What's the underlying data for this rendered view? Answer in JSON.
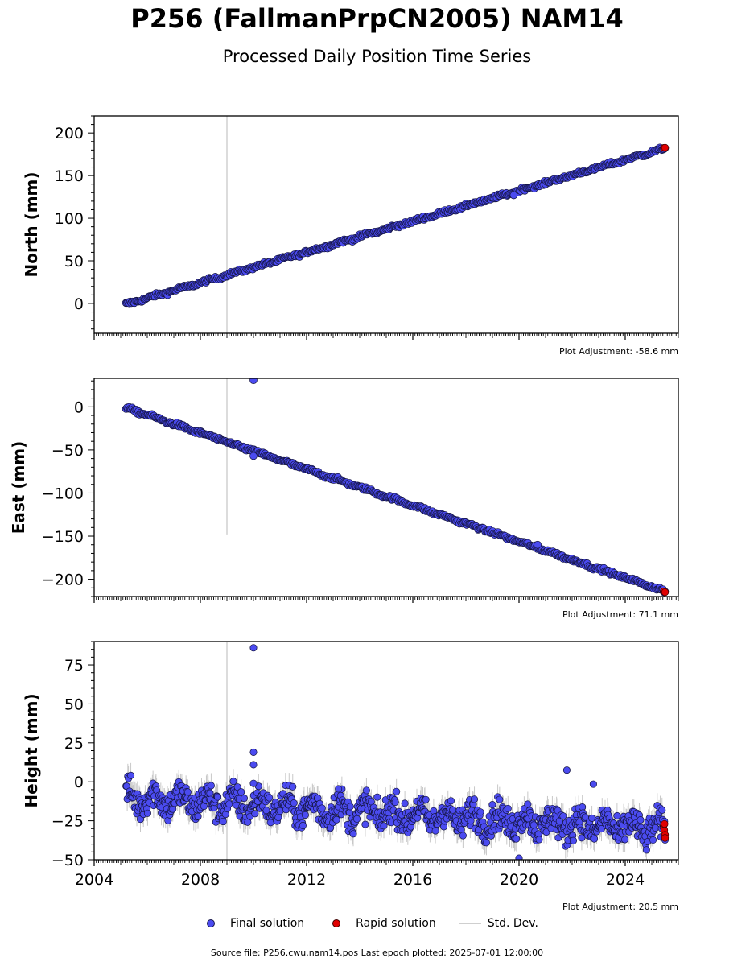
{
  "title": "P256 (FallmanPrpCN2005) NAM14",
  "subtitle": "Processed Daily Position Time Series",
  "legend": {
    "final": "Final solution",
    "rapid": "Rapid solution",
    "std": "Std. Dev."
  },
  "footer": "Source file: P256.cwu.nam14.pos  Last epoch plotted: 2025-07-01 12:00:00",
  "colors": {
    "final": "#4b4bf0",
    "rapid": "#e00000",
    "std": "#c8c8c8"
  },
  "chart_data": [
    {
      "type": "scatter",
      "ylabel": "North (mm)",
      "adjustment": "Plot Adjustment: -58.6 mm",
      "xlim": [
        2004,
        2026
      ],
      "ylim": [
        -35,
        220
      ],
      "yticks": [
        0,
        50,
        100,
        150,
        200
      ],
      "data_start": 2005.2,
      "data_end": 2025.5,
      "trend_start": -1,
      "trend_end": 182,
      "scatter_noise_mm": 1.5,
      "rapid": [
        [
          2025.45,
          182.5
        ],
        [
          2025.5,
          182.8
        ]
      ],
      "std_spike": {
        "x": 2009.0,
        "ymin": -35,
        "ymax": 220
      },
      "outliers": [
        [
          2019.8,
          127
        ]
      ]
    },
    {
      "type": "scatter",
      "ylabel": "East (mm)",
      "adjustment": "Plot Adjustment: 71.1 mm",
      "xlim": [
        2004,
        2026
      ],
      "ylim": [
        -220,
        33
      ],
      "yticks": [
        -200,
        -150,
        -100,
        -50,
        0
      ],
      "data_start": 2005.2,
      "data_end": 2025.5,
      "trend_start": -1,
      "trend_end": -214,
      "scatter_noise_mm": 1.5,
      "rapid": [
        [
          2025.45,
          -214
        ],
        [
          2025.5,
          -215
        ]
      ],
      "std_spike": {
        "x": 2009.0,
        "ymin": -148,
        "ymax": 33
      },
      "outliers": [
        [
          2010.0,
          31
        ],
        [
          2010.0,
          -57
        ],
        [
          2020.7,
          -160
        ]
      ]
    },
    {
      "type": "scatter",
      "ylabel": "Height (mm)",
      "adjustment": "Plot Adjustment: 20.5 mm",
      "xlabel_ticks": [
        "2004",
        "2008",
        "2012",
        "2016",
        "2020",
        "2024"
      ],
      "xlim": [
        2004,
        2026
      ],
      "ylim": [
        -50,
        90
      ],
      "yticks": [
        -50,
        -25,
        0,
        25,
        50,
        75
      ],
      "data_start": 2005.2,
      "data_end": 2025.5,
      "trend_start": -10,
      "trend_end": -31,
      "scatter_noise_mm": 7,
      "rapid": [
        [
          2025.45,
          -28
        ],
        [
          2025.47,
          -31
        ],
        [
          2025.5,
          -34
        ],
        [
          2025.5,
          -36
        ],
        [
          2025.48,
          -27
        ]
      ],
      "std_spike": {
        "x": 2009.0,
        "ymin": -50,
        "ymax": 90
      },
      "outliers": [
        [
          2010.0,
          86
        ],
        [
          2010.0,
          19
        ],
        [
          2010.0,
          11
        ],
        [
          2010.0,
          -1
        ],
        [
          2021.8,
          7.5
        ],
        [
          2022.8,
          -1.5
        ],
        [
          2013.2,
          -4.5
        ],
        [
          2020.0,
          -49
        ]
      ]
    }
  ]
}
